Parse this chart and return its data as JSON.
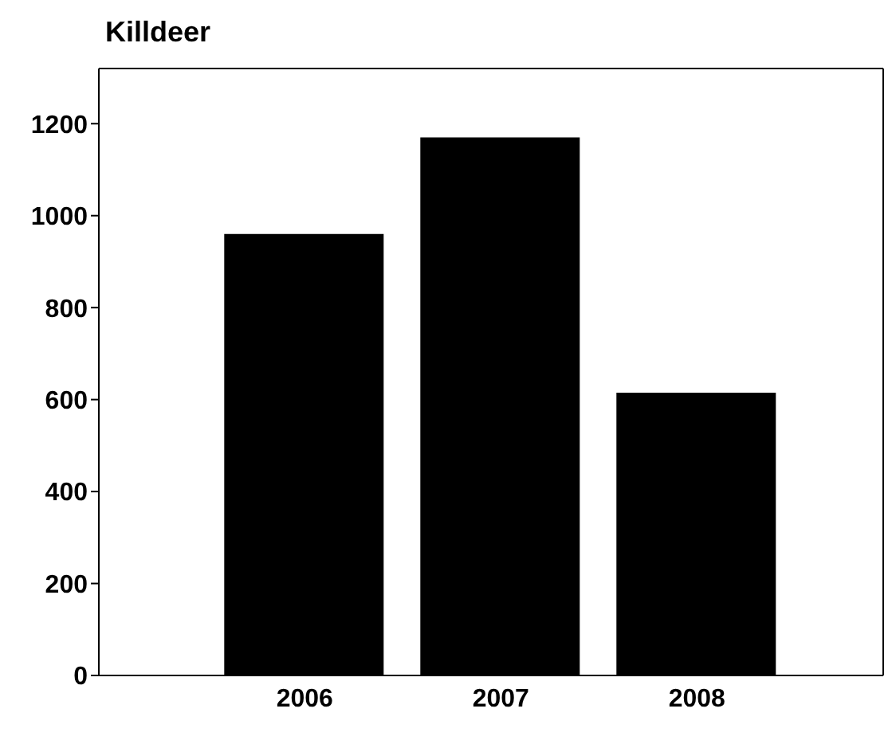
{
  "chart_data": {
    "type": "bar",
    "title": "Killdeer",
    "categories": [
      "2006",
      "2007",
      "2008"
    ],
    "values": [
      960,
      1170,
      615
    ],
    "color": "#000000",
    "ylim": [
      0,
      1320
    ],
    "yticks": [
      0,
      200,
      400,
      600,
      800,
      1000,
      1200
    ],
    "grid": false
  }
}
